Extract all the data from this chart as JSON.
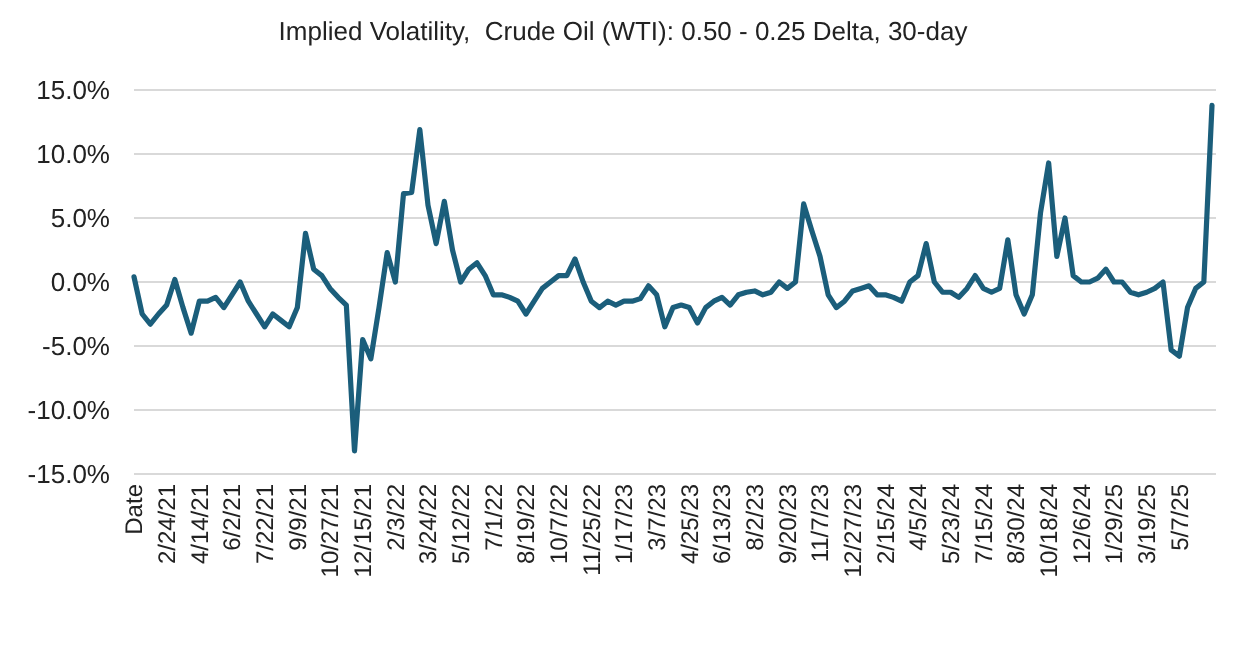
{
  "chart_data": {
    "type": "line",
    "title": "Implied Volatility,  Crude Oil (WTI): 0.50 - 0.25 Delta, 30-day",
    "categories": [
      "Date",
      null,
      null,
      null,
      "2/24/21",
      null,
      null,
      null,
      "4/14/21",
      null,
      null,
      null,
      "6/2/21",
      null,
      null,
      null,
      "7/22/21",
      null,
      null,
      null,
      "9/9/21",
      null,
      null,
      null,
      "10/27/21",
      null,
      null,
      null,
      "12/15/21",
      null,
      null,
      null,
      "2/3/22",
      null,
      null,
      null,
      "3/24/22",
      null,
      null,
      null,
      "5/12/22",
      null,
      null,
      null,
      "7/1/22",
      null,
      null,
      null,
      "8/19/22",
      null,
      null,
      null,
      "10/7/22",
      null,
      null,
      null,
      "11/25/22",
      null,
      null,
      null,
      "1/17/23",
      null,
      null,
      null,
      "3/7/23",
      null,
      null,
      null,
      "4/25/23",
      null,
      null,
      null,
      "6/13/23",
      null,
      null,
      null,
      "8/2/23",
      null,
      null,
      null,
      "9/20/23",
      null,
      null,
      null,
      "11/7/23",
      null,
      null,
      null,
      "12/27/23",
      null,
      null,
      null,
      "2/15/24",
      null,
      null,
      null,
      "4/5/24",
      null,
      null,
      null,
      "5/23/24",
      null,
      null,
      null,
      "7/15/24",
      null,
      null,
      null,
      "8/30/24",
      null,
      null,
      null,
      "10/18/24",
      null,
      null,
      null,
      "12/6/24",
      null,
      null,
      null,
      "1/29/25",
      null,
      null,
      null,
      "3/19/25",
      null,
      null,
      null,
      "5/7/25",
      null,
      null,
      null,
      null
    ],
    "series": [
      {
        "color": "#1b5e7b",
        "values": [
          0.4,
          -2.5,
          -3.3,
          -2.5,
          -1.8,
          0.2,
          -2.0,
          -4.0,
          -1.5,
          -1.5,
          -1.2,
          -2.0,
          -1.0,
          0,
          -1.5,
          -2.5,
          -3.5,
          -2.5,
          -3.0,
          -3.5,
          -2.0,
          3.8,
          1.0,
          0.5,
          -0.5,
          -1.2,
          -1.8,
          -13.2,
          -4.5,
          -6.0,
          -2.0,
          2.3,
          0,
          6.9,
          7.0,
          11.9,
          6.0,
          3.0,
          6.3,
          2.5,
          0,
          1.0,
          1.5,
          0.5,
          -1.0,
          -1.0,
          -1.2,
          -1.5,
          -2.5,
          -1.5,
          -0.5,
          0,
          0.5,
          0.5,
          1.8,
          0,
          -1.5,
          -2.0,
          -1.5,
          -1.8,
          -1.5,
          -1.5,
          -1.3,
          -0.3,
          -1.0,
          -3.5,
          -2.0,
          -1.8,
          -2.0,
          -3.2,
          -2.0,
          -1.5,
          -1.2,
          -1.8,
          -1.0,
          -0.8,
          -0.7,
          -1.0,
          -0.8,
          0,
          -0.5,
          0,
          6.1,
          4.0,
          2.0,
          -1.0,
          -2.0,
          -1.5,
          -0.7,
          -0.5,
          -0.3,
          -1.0,
          -1.0,
          -1.2,
          -1.5,
          0,
          0.5,
          3.0,
          0,
          -0.8,
          -0.8,
          -1.2,
          -0.5,
          0.5,
          -0.5,
          -0.8,
          -0.5,
          3.3,
          -1.0,
          -2.5,
          -1.0,
          5.4,
          9.3,
          2.0,
          5.0,
          0.5,
          0,
          0,
          0.3,
          1.0,
          0,
          0,
          -0.8,
          -1.0,
          -0.8,
          -0.5,
          0,
          -5.3,
          -5.8,
          -2.0,
          -0.5,
          0,
          13.8
        ]
      }
    ],
    "ylim": [
      -15,
      15
    ],
    "yticks": [
      {
        "value": -15,
        "label": "-15.0%"
      },
      {
        "value": -10,
        "label": "-10.0%"
      },
      {
        "value": -5,
        "label": "-5.0%"
      },
      {
        "value": 0,
        "label": "0.0%"
      },
      {
        "value": 5,
        "label": "5.0%"
      },
      {
        "value": 10,
        "label": "10.0%"
      },
      {
        "value": 15,
        "label": "15.0%"
      }
    ],
    "grid": "y",
    "marker": "none",
    "line_style": "solid"
  }
}
